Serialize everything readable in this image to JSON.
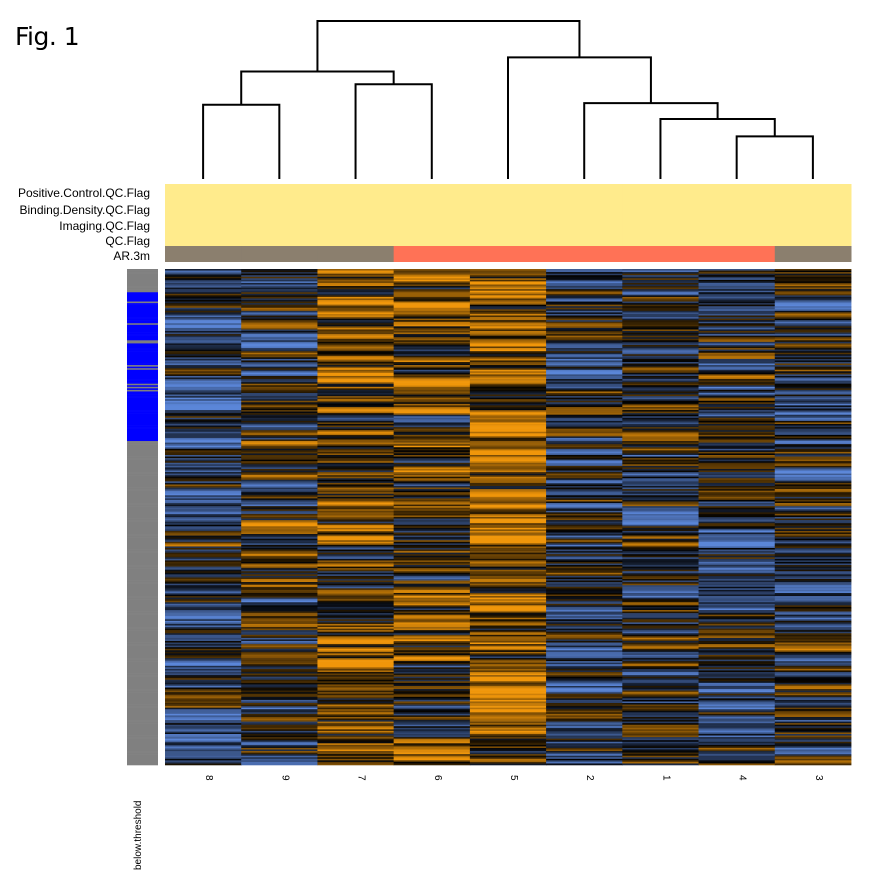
{
  "figure_label": "Fig. 1",
  "chart_data": {
    "type": "heatmap",
    "title": "",
    "columns": [
      "8",
      "9",
      "7",
      "6",
      "5",
      "2",
      "1",
      "4",
      "3"
    ],
    "column_annotations": [
      {
        "name": "Positive.Control.QC.Flag",
        "values": [
          "pass",
          "pass",
          "pass",
          "pass",
          "pass",
          "pass",
          "pass",
          "pass",
          "pass"
        ]
      },
      {
        "name": "Binding.Density.QC.Flag",
        "values": [
          "pass",
          "pass",
          "pass",
          "pass",
          "pass",
          "pass",
          "pass",
          "pass",
          "pass"
        ]
      },
      {
        "name": "Imaging.QC.Flag",
        "values": [
          "pass",
          "pass",
          "pass",
          "pass",
          "pass",
          "pass",
          "pass",
          "pass",
          "pass"
        ]
      },
      {
        "name": "QC.Flag",
        "values": [
          "pass",
          "pass",
          "pass",
          "pass",
          "pass",
          "pass",
          "pass",
          "pass",
          "pass"
        ]
      },
      {
        "name": "AR.3m",
        "values": [
          "no",
          "no",
          "no",
          "yes",
          "yes",
          "yes",
          "yes",
          "yes",
          "no"
        ]
      }
    ],
    "annotation_colors": {
      "pass": "#FFEB8C",
      "no": "#8B7F6E",
      "yes": "#FF7256"
    },
    "row_annotation": {
      "name": "below.threshold",
      "segments_fraction": [
        {
          "from": 0.0,
          "to": 0.044,
          "value": "TRUE"
        },
        {
          "from": 0.044,
          "to": 0.346,
          "value": "FALSE",
          "interleaved_true_fraction": 0.18
        },
        {
          "from": 0.346,
          "to": 1.0,
          "value": "TRUE"
        }
      ],
      "colors": {
        "TRUE": "#808080",
        "FALSE": "#0000FF"
      }
    },
    "color_scale": {
      "low": "#5B86D8",
      "mid": "#000000",
      "high": "#F0960A",
      "range": [
        -2,
        2
      ]
    },
    "dendrogram": {
      "leaf_order": [
        "8",
        "9",
        "7",
        "6",
        "5",
        "2",
        "1",
        "4",
        "3"
      ],
      "merges": [
        {
          "a": "8",
          "b": "9",
          "height": 0.47
        },
        {
          "a": "7",
          "b": "6",
          "height": 0.6
        },
        {
          "a": "(8,9)",
          "b": "(7,6)",
          "height": 0.68
        },
        {
          "a": "4",
          "b": "3",
          "height": 0.27
        },
        {
          "a": "1",
          "b": "(4,3)",
          "height": 0.38
        },
        {
          "a": "2",
          "b": "(1,(4,3))",
          "height": 0.48
        },
        {
          "a": "5",
          "b": "(2,(1,(4,3)))",
          "height": 0.77
        },
        {
          "a": "((8,9),(7,6))",
          "b": "(5,(2,(1,(4,3))))",
          "height": 1.0
        }
      ]
    },
    "n_rows": 320,
    "column_bias": {
      "8": -0.55,
      "9": 0.05,
      "7": 0.55,
      "6": 0.35,
      "5": 0.85,
      "2": -0.35,
      "1": -0.3,
      "4": -0.3,
      "3": -0.15
    },
    "row_annotation_label": "below.threshold"
  }
}
